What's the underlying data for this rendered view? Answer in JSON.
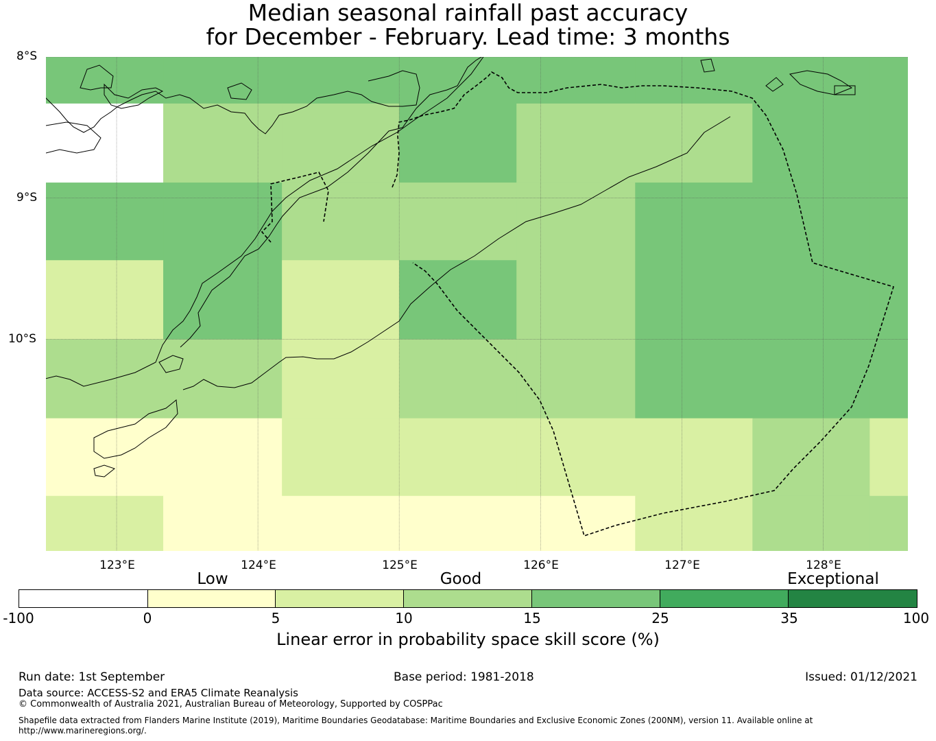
{
  "title": {
    "line1": "Median seasonal rainfall past accuracy",
    "line2": "for December - February. Lead time: 3 months"
  },
  "map": {
    "lat_labels": [
      "8°S",
      "9°S",
      "10°S"
    ],
    "lon_labels": [
      "123°E",
      "124°E",
      "125°E",
      "126°E",
      "127°E",
      "128°E"
    ],
    "extent": {
      "lon_min": 122.5,
      "lon_max": 128.6,
      "lat_top": -8.0,
      "lat_bottom": -11.5
    },
    "grid_lons": [
      123,
      124,
      125,
      126,
      127,
      128
    ],
    "grid_lats": [
      -8,
      -9,
      -10
    ],
    "cells": {
      "lon_edges": [
        122.5,
        123.33,
        124.17,
        125.0,
        125.83,
        126.67,
        127.5,
        128.33,
        128.6
      ],
      "lat_edges": [
        -8.0,
        -8.33,
        -8.89,
        -9.44,
        -10.0,
        -10.56,
        -11.11,
        -11.5
      ],
      "classes": [
        [
          3,
          3,
          3,
          3,
          3,
          3,
          3,
          3
        ],
        [
          -1,
          2,
          2,
          3,
          2,
          2,
          3,
          3
        ],
        [
          3,
          3,
          2,
          2,
          2,
          3,
          3,
          3
        ],
        [
          1,
          3,
          1,
          3,
          2,
          3,
          3,
          3
        ],
        [
          2,
          2,
          1,
          2,
          2,
          3,
          3,
          3
        ],
        [
          0,
          0,
          1,
          1,
          1,
          1,
          2,
          1
        ],
        [
          1,
          0,
          0,
          0,
          0,
          1,
          2,
          2
        ]
      ]
    }
  },
  "category_labels": {
    "low": "Low",
    "good": "Good",
    "exceptional": "Exceptional"
  },
  "colorbar": {
    "ticks": [
      "-100",
      "0",
      "5",
      "10",
      "15",
      "25",
      "35",
      "100"
    ],
    "colors": [
      "#ffffff",
      "#ffffcc",
      "#d9f0a3",
      "#addd8e",
      "#78c679",
      "#41ab5d",
      "#238443"
    ],
    "label": "Linear error in probability space skill score (%)"
  },
  "footer": {
    "run_date": "Run date: 1st September",
    "base_period": "Base period: 1981-2018",
    "issued": "Issued: 01/12/2021",
    "data_source": "Data source: ACCESS-S2 and ERA5 Climate Reanalysis",
    "copyright": "© Commonwealth of Australia 2021, Australian Bureau of Meteorology, Supported by COSPPac",
    "shapefile": "Shapefile data extracted from Flanders Marine Institute (2019), Maritime Boundaries Geodatabase: Maritime Boundaries and Exclusive Economic Zones (200NM), version 11. Available online at http://www.marineregions.org/."
  }
}
